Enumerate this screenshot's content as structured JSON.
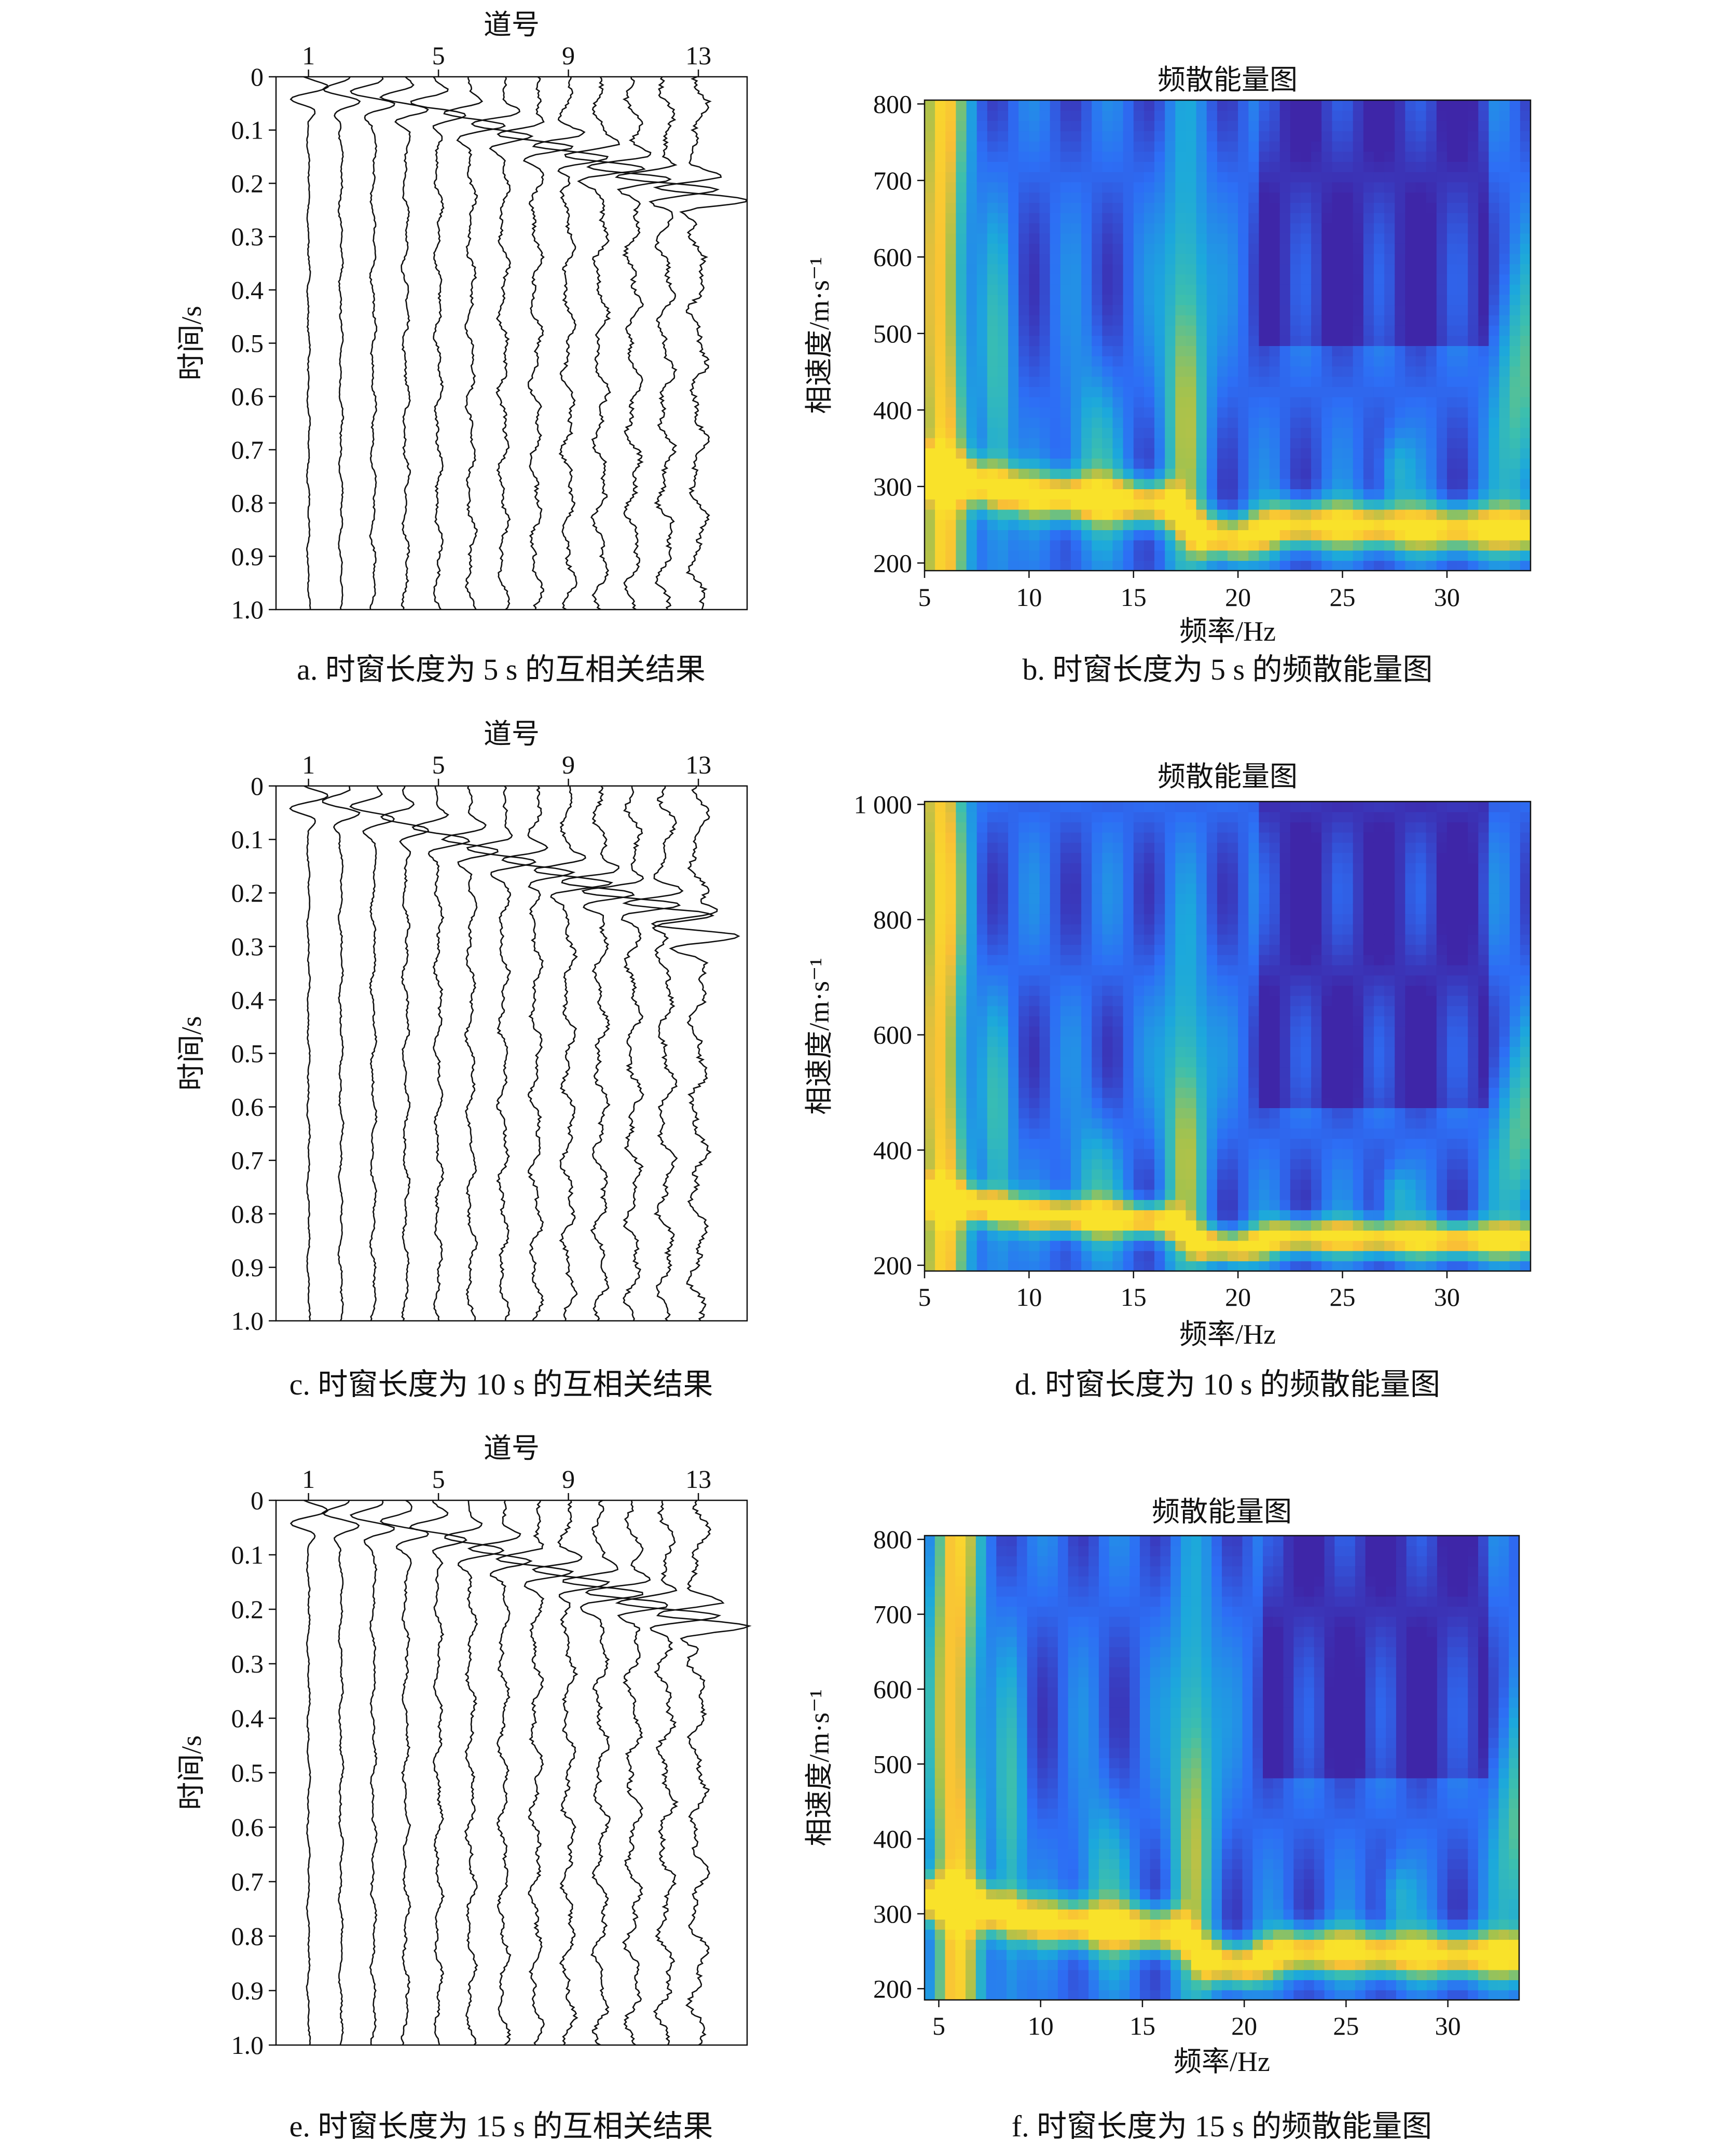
{
  "chart_data": [
    {
      "id": "a",
      "type": "line",
      "caption": "a. 时窗长度为 5 s 的互相关结果",
      "xlabel": "道号",
      "ylabel": "时间/s",
      "x_ticks": [
        "1",
        "5",
        "9",
        "13"
      ],
      "y_ticks": [
        "0",
        "0.1",
        "0.2",
        "0.3",
        "0.4",
        "0.5",
        "0.6",
        "0.7",
        "0.8",
        "0.9",
        "1.0"
      ],
      "xlim": [
        0,
        14.5
      ],
      "ylim": [
        0,
        1.0
      ],
      "y_inverted": true,
      "traces": [
        1,
        2,
        3,
        4,
        5,
        6,
        7,
        8,
        9,
        10,
        11,
        12,
        13
      ],
      "trace_peaks": [
        0.03,
        0.035,
        0.04,
        0.05,
        0.06,
        0.08,
        0.1,
        0.12,
        0.14,
        0.16,
        0.18,
        0.2,
        0.22
      ]
    },
    {
      "id": "b",
      "type": "heatmap",
      "title": "频散能量图",
      "caption": "b. 时窗长度为 5 s 的频散能量图",
      "xlabel": "频率/Hz",
      "ylabel": "相速度/m·s⁻¹",
      "x_ticks": [
        "5",
        "10",
        "15",
        "20",
        "25",
        "30"
      ],
      "y_ticks": [
        "200",
        "300",
        "400",
        "500",
        "600",
        "700",
        "800"
      ],
      "xlim": [
        5,
        34
      ],
      "ylim": [
        190,
        805
      ],
      "dispersion_ridge": {
        "f": [
          5,
          10,
          15,
          17,
          18,
          20,
          22,
          25,
          30,
          34
        ],
        "v": [
          320,
          290,
          280,
          275,
          240,
          230,
          250,
          250,
          245,
          245
        ]
      },
      "colormap": [
        "#3e26a8",
        "#2d6ef5",
        "#1ca8dc",
        "#3cbfae",
        "#a6c24c",
        "#f9bf36",
        "#f9e22a"
      ]
    },
    {
      "id": "c",
      "type": "line",
      "caption": "c. 时窗长度为 10 s 的互相关结果",
      "xlabel": "道号",
      "ylabel": "时间/s",
      "x_ticks": [
        "1",
        "5",
        "9",
        "13"
      ],
      "y_ticks": [
        "0",
        "0.1",
        "0.2",
        "0.3",
        "0.4",
        "0.5",
        "0.6",
        "0.7",
        "0.8",
        "0.9",
        "1.0"
      ],
      "xlim": [
        0,
        14.5
      ],
      "ylim": [
        0,
        1.0
      ],
      "y_inverted": true,
      "traces": [
        1,
        2,
        3,
        4,
        5,
        6,
        7,
        8,
        9,
        10,
        11,
        12,
        13
      ],
      "trace_peaks": [
        0.03,
        0.04,
        0.05,
        0.07,
        0.09,
        0.11,
        0.13,
        0.15,
        0.17,
        0.19,
        0.21,
        0.23,
        0.27
      ]
    },
    {
      "id": "d",
      "type": "heatmap",
      "title": "频散能量图",
      "caption": "d. 时窗长度为 10 s 的频散能量图",
      "xlabel": "频率/Hz",
      "ylabel": "相速度/m·s⁻¹",
      "x_ticks": [
        "5",
        "10",
        "15",
        "20",
        "25",
        "30"
      ],
      "y_ticks": [
        "200",
        "400",
        "600",
        "800",
        "1 000"
      ],
      "xlim": [
        5,
        34
      ],
      "ylim": [
        190,
        1005
      ],
      "dispersion_ridge": {
        "f": [
          5,
          10,
          15,
          17,
          18,
          20,
          22,
          25,
          30,
          34
        ],
        "v": [
          320,
          290,
          280,
          275,
          240,
          230,
          250,
          250,
          245,
          245
        ]
      },
      "colormap": [
        "#3e26a8",
        "#2d6ef5",
        "#1ca8dc",
        "#3cbfae",
        "#a6c24c",
        "#f9bf36",
        "#f9e22a"
      ]
    },
    {
      "id": "e",
      "type": "line",
      "caption": "e. 时窗长度为 15 s 的互相关结果",
      "xlabel": "道号",
      "ylabel": "时间/s",
      "x_ticks": [
        "1",
        "5",
        "9",
        "13"
      ],
      "y_ticks": [
        "0",
        "0.1",
        "0.2",
        "0.3",
        "0.4",
        "0.5",
        "0.6",
        "0.7",
        "0.8",
        "0.9",
        "1.0"
      ],
      "xlim": [
        0,
        14.5
      ],
      "ylim": [
        0,
        1.0
      ],
      "y_inverted": true,
      "traces": [
        1,
        2,
        3,
        4,
        5,
        6,
        7,
        8,
        9,
        10,
        11,
        12,
        13
      ],
      "trace_peaks": [
        0.03,
        0.035,
        0.04,
        0.05,
        0.06,
        0.08,
        0.1,
        0.12,
        0.14,
        0.16,
        0.18,
        0.2,
        0.22
      ]
    },
    {
      "id": "f",
      "type": "heatmap",
      "title": "频散能量图",
      "caption": "f. 时窗长度为 15 s 的频散能量图",
      "xlabel": "频率/Hz",
      "ylabel": "相速度/m·s⁻¹",
      "x_ticks": [
        "5",
        "10",
        "15",
        "20",
        "25",
        "30"
      ],
      "y_ticks": [
        "200",
        "300",
        "400",
        "500",
        "600",
        "700",
        "800"
      ],
      "xlim": [
        4.3,
        33.5
      ],
      "ylim": [
        185,
        805
      ],
      "dispersion_ridge": {
        "f": [
          5,
          10,
          15,
          17,
          18,
          20,
          22,
          25,
          30,
          34
        ],
        "v": [
          320,
          290,
          280,
          275,
          240,
          230,
          250,
          250,
          245,
          245
        ]
      },
      "colormap": [
        "#3e26a8",
        "#2d6ef5",
        "#1ca8dc",
        "#3cbfae",
        "#a6c24c",
        "#f9bf36",
        "#f9e22a"
      ]
    }
  ]
}
